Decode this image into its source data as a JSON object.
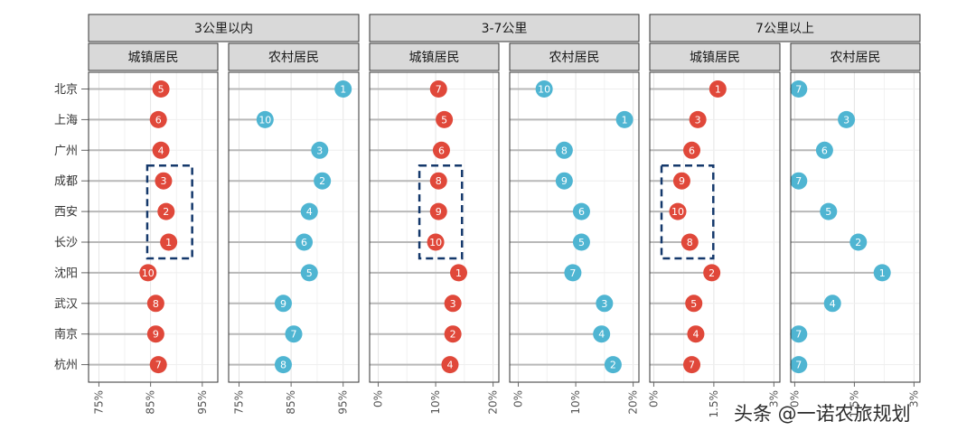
{
  "chart_data": {
    "type": "lollipop",
    "cities": [
      "北京",
      "上海",
      "广州",
      "成都",
      "西安",
      "长沙",
      "沈阳",
      "武汉",
      "南京",
      "杭州"
    ],
    "colors": {
      "城镇居民": "#e0483a",
      "农村居民": "#4fb5d2",
      "highlight_box": "#14386b"
    },
    "distance_groups": [
      {
        "label": "3公里以内",
        "xlim": [
          73,
          98
        ],
        "ticks": [
          75,
          85,
          95
        ],
        "tick_labels": [
          "75%",
          "85%",
          "95%"
        ],
        "panels": [
          {
            "label": "城镇居民",
            "values": [
              87,
              86.5,
              87,
              87.5,
              88,
              88.5,
              84.5,
              86,
              86,
              86.5
            ],
            "ranks": [
              "5",
              "6",
              "4",
              "3",
              "2",
              "1",
              "10",
              "8",
              "9",
              "7"
            ]
          },
          {
            "label": "农村居民",
            "values": [
              95,
              80,
              90.5,
              91,
              88.5,
              87.5,
              88.5,
              83.5,
              85.5,
              83.5
            ],
            "ranks": [
              "1",
              "10",
              "3",
              "2",
              "4",
              "6",
              "5",
              "9",
              "7",
              "8"
            ]
          }
        ],
        "highlight": {
          "panel": 0,
          "from": "成都",
          "to": "长沙"
        }
      },
      {
        "label": "3-7公里",
        "xlim": [
          -1.5,
          21
        ],
        "ticks": [
          0,
          10,
          20
        ],
        "tick_labels": [
          "0%",
          "10%",
          "20%"
        ],
        "panels": [
          {
            "label": "城镇居民",
            "values": [
              10.5,
              11.5,
              11,
              10.5,
              10.5,
              10,
              14,
              13,
              13,
              12.5
            ],
            "ranks": [
              "7",
              "5",
              "6",
              "8",
              "9",
              "10",
              "1",
              "3",
              "2",
              "4"
            ]
          },
          {
            "label": "农村居民",
            "values": [
              4.5,
              18.5,
              8,
              8,
              11,
              11,
              9.5,
              15,
              14.5,
              16.5
            ],
            "ranks": [
              "10",
              "1",
              "8",
              "9",
              "6",
              "5",
              "7",
              "3",
              "4",
              "2"
            ]
          }
        ],
        "highlight": {
          "panel": 0,
          "from": "成都",
          "to": "长沙"
        }
      },
      {
        "label": "7公里以上",
        "xlim": [
          -0.1,
          3.15
        ],
        "ticks": [
          0,
          1.5,
          3
        ],
        "tick_labels": [
          "0%",
          "1.5%",
          "3%"
        ],
        "panels": [
          {
            "label": "城镇居民",
            "values": [
              1.6,
              1.1,
              0.95,
              0.7,
              0.6,
              0.9,
              1.45,
              1.0,
              1.05,
              0.95
            ],
            "ranks": [
              "1",
              "3",
              "6",
              "9",
              "10",
              "8",
              "2",
              "5",
              "4",
              "7"
            ]
          },
          {
            "label": "农村居民",
            "values": [
              0.1,
              1.3,
              0.75,
              0.1,
              0.85,
              1.6,
              2.2,
              0.95,
              0.1,
              0.1
            ],
            "ranks": [
              "7",
              "3",
              "6",
              "7",
              "5",
              "2",
              "1",
              "4",
              "7",
              "7"
            ]
          }
        ],
        "highlight": {
          "panel": 0,
          "from": "成都",
          "to": "长沙"
        }
      }
    ]
  },
  "watermark": "头条 @一诺农旅规划"
}
